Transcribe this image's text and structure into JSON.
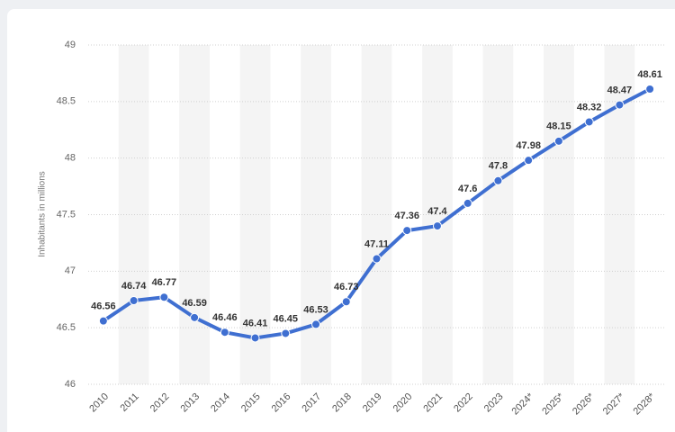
{
  "chart_data": {
    "type": "line",
    "y_label": "Inhabitants in millions",
    "categories": [
      "2010",
      "2011",
      "2012",
      "2013",
      "2014",
      "2015",
      "2016",
      "2017",
      "2018",
      "2019",
      "2020",
      "2021",
      "2022",
      "2023",
      "2024*",
      "2025*",
      "2026*",
      "2027*",
      "2028*"
    ],
    "values": [
      46.56,
      46.74,
      46.77,
      46.59,
      46.46,
      46.41,
      46.45,
      46.53,
      46.73,
      47.11,
      47.36,
      47.4,
      47.6,
      47.8,
      47.98,
      48.15,
      48.32,
      48.47,
      48.61
    ],
    "color": "#3f6fd1",
    "ylim": [
      46,
      49
    ],
    "yticks": [
      46,
      46.5,
      47,
      47.5,
      48,
      48.5,
      49
    ],
    "grid": true
  }
}
